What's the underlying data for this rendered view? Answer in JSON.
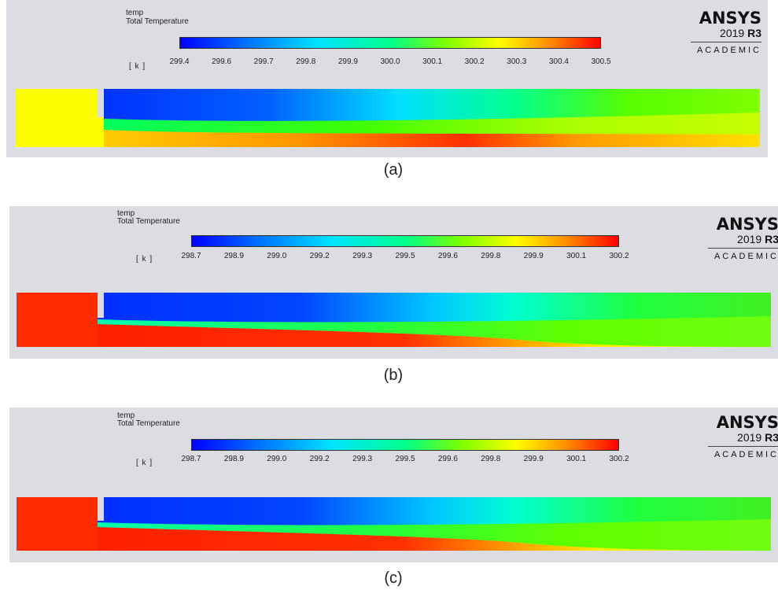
{
  "panels": [
    {
      "caption": "(a)",
      "variable_name": "temp",
      "variable_label": "Total Temperature",
      "unit": "[ k ]",
      "colorbar_ticks": [
        "299.4",
        "299.6",
        "299.7",
        "299.8",
        "299.9",
        "300.0",
        "300.1",
        "300.2",
        "300.3",
        "300.4",
        "300.5"
      ],
      "inlet_color": "#ffff00"
    },
    {
      "caption": "(b)",
      "variable_name": "temp",
      "variable_label": "Total Temperature",
      "unit": "[ k ]",
      "colorbar_ticks": [
        "298.7",
        "298.9",
        "299.0",
        "299.2",
        "299.3",
        "299.5",
        "299.6",
        "299.8",
        "299.9",
        "300.1",
        "300.2"
      ],
      "inlet_color": "#ff2a00"
    },
    {
      "caption": "(c)",
      "variable_name": "temp",
      "variable_label": "Total Temperature",
      "unit": "[ k ]",
      "colorbar_ticks": [
        "298.7",
        "298.9",
        "299.0",
        "299.2",
        "299.3",
        "299.5",
        "299.6",
        "299.8",
        "299.9",
        "300.1",
        "300.2"
      ],
      "inlet_color": "#ff2a00"
    }
  ],
  "logo": {
    "brand": "ANSYS",
    "version_year": "2019",
    "version_release": "R3",
    "edition": "ACADEMIC"
  },
  "colors": {
    "background": "#dcdde3",
    "cold": "#0000ff",
    "hot": "#ff0000"
  }
}
